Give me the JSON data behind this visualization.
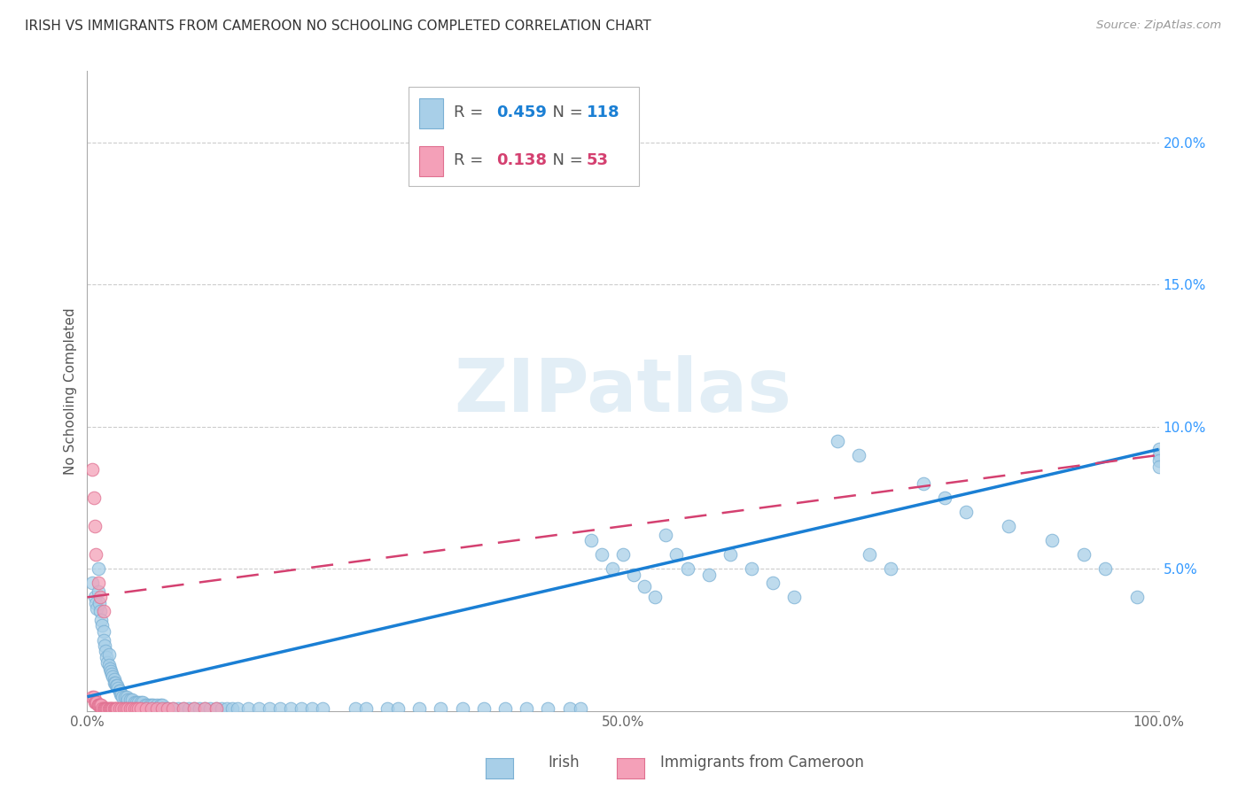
{
  "title": "IRISH VS IMMIGRANTS FROM CAMEROON NO SCHOOLING COMPLETED CORRELATION CHART",
  "source": "Source: ZipAtlas.com",
  "ylabel": "No Schooling Completed",
  "xlim": [
    0,
    1.0
  ],
  "ylim": [
    0,
    0.225
  ],
  "irish_R": 0.459,
  "irish_N": 118,
  "cameroon_R": 0.138,
  "cameroon_N": 53,
  "irish_color": "#a8cfe8",
  "cameroon_color": "#f4a0b8",
  "irish_color_edge": "#7ab0d4",
  "cameroon_color_edge": "#e07090",
  "irish_line_color": "#1a7fd4",
  "cameroon_line_color": "#d44070",
  "watermark_color": "#d0e4f0",
  "grid_color": "#cccccc",
  "tick_color_y": "#3399ff",
  "tick_color_x": "#666666",
  "irish_x": [
    0.005,
    0.007,
    0.008,
    0.009,
    0.01,
    0.01,
    0.011,
    0.012,
    0.013,
    0.014,
    0.015,
    0.015,
    0.016,
    0.017,
    0.018,
    0.019,
    0.02,
    0.02,
    0.021,
    0.022,
    0.023,
    0.024,
    0.025,
    0.025,
    0.026,
    0.027,
    0.028,
    0.029,
    0.03,
    0.03,
    0.031,
    0.032,
    0.033,
    0.035,
    0.037,
    0.038,
    0.04,
    0.042,
    0.044,
    0.046,
    0.048,
    0.05,
    0.052,
    0.054,
    0.056,
    0.058,
    0.06,
    0.062,
    0.065,
    0.068,
    0.07,
    0.073,
    0.075,
    0.08,
    0.085,
    0.09,
    0.095,
    0.1,
    0.105,
    0.11,
    0.115,
    0.12,
    0.125,
    0.13,
    0.135,
    0.14,
    0.15,
    0.16,
    0.17,
    0.18,
    0.19,
    0.2,
    0.21,
    0.22,
    0.25,
    0.26,
    0.28,
    0.29,
    0.31,
    0.33,
    0.35,
    0.37,
    0.39,
    0.41,
    0.43,
    0.45,
    0.46,
    0.47,
    0.48,
    0.49,
    0.5,
    0.51,
    0.52,
    0.53,
    0.54,
    0.55,
    0.56,
    0.58,
    0.6,
    0.62,
    0.64,
    0.66,
    0.7,
    0.72,
    0.73,
    0.75,
    0.78,
    0.8,
    0.82,
    0.86,
    0.9,
    0.93,
    0.95,
    0.98,
    1.0,
    1.0,
    1.0,
    1.0
  ],
  "irish_y": [
    0.045,
    0.04,
    0.038,
    0.036,
    0.05,
    0.042,
    0.038,
    0.035,
    0.032,
    0.03,
    0.028,
    0.025,
    0.023,
    0.021,
    0.019,
    0.017,
    0.02,
    0.016,
    0.015,
    0.014,
    0.013,
    0.012,
    0.011,
    0.01,
    0.01,
    0.009,
    0.009,
    0.008,
    0.007,
    0.007,
    0.006,
    0.006,
    0.005,
    0.005,
    0.005,
    0.004,
    0.004,
    0.004,
    0.003,
    0.003,
    0.003,
    0.003,
    0.003,
    0.002,
    0.002,
    0.002,
    0.002,
    0.002,
    0.002,
    0.002,
    0.002,
    0.001,
    0.001,
    0.001,
    0.001,
    0.001,
    0.001,
    0.001,
    0.001,
    0.001,
    0.001,
    0.001,
    0.001,
    0.001,
    0.001,
    0.001,
    0.001,
    0.001,
    0.001,
    0.001,
    0.001,
    0.001,
    0.001,
    0.001,
    0.001,
    0.001,
    0.001,
    0.001,
    0.001,
    0.001,
    0.001,
    0.001,
    0.001,
    0.001,
    0.001,
    0.001,
    0.001,
    0.06,
    0.055,
    0.05,
    0.055,
    0.048,
    0.044,
    0.04,
    0.062,
    0.055,
    0.05,
    0.048,
    0.055,
    0.05,
    0.045,
    0.04,
    0.095,
    0.09,
    0.055,
    0.05,
    0.08,
    0.075,
    0.07,
    0.065,
    0.06,
    0.055,
    0.05,
    0.04,
    0.092,
    0.09,
    0.088,
    0.086
  ],
  "cam_x": [
    0.005,
    0.006,
    0.007,
    0.008,
    0.009,
    0.01,
    0.01,
    0.011,
    0.012,
    0.013,
    0.014,
    0.015,
    0.016,
    0.017,
    0.018,
    0.019,
    0.02,
    0.021,
    0.022,
    0.023,
    0.024,
    0.025,
    0.026,
    0.027,
    0.028,
    0.03,
    0.032,
    0.034,
    0.036,
    0.038,
    0.04,
    0.042,
    0.044,
    0.046,
    0.048,
    0.05,
    0.055,
    0.06,
    0.065,
    0.07,
    0.075,
    0.08,
    0.09,
    0.1,
    0.11,
    0.12,
    0.005,
    0.006,
    0.007,
    0.008,
    0.01,
    0.012,
    0.015
  ],
  "cam_y": [
    0.005,
    0.005,
    0.003,
    0.003,
    0.003,
    0.002,
    0.002,
    0.002,
    0.002,
    0.002,
    0.001,
    0.001,
    0.001,
    0.001,
    0.001,
    0.001,
    0.001,
    0.001,
    0.001,
    0.001,
    0.001,
    0.001,
    0.001,
    0.001,
    0.001,
    0.001,
    0.001,
    0.001,
    0.001,
    0.001,
    0.001,
    0.001,
    0.001,
    0.001,
    0.001,
    0.001,
    0.001,
    0.001,
    0.001,
    0.001,
    0.001,
    0.001,
    0.001,
    0.001,
    0.001,
    0.001,
    0.085,
    0.075,
    0.065,
    0.055,
    0.045,
    0.04,
    0.035
  ],
  "irish_line_x0": 0.0,
  "irish_line_x1": 1.0,
  "irish_line_y0": 0.005,
  "irish_line_y1": 0.092,
  "cam_line_x0": 0.0,
  "cam_line_x1": 1.0,
  "cam_line_y0": 0.04,
  "cam_line_y1": 0.09
}
